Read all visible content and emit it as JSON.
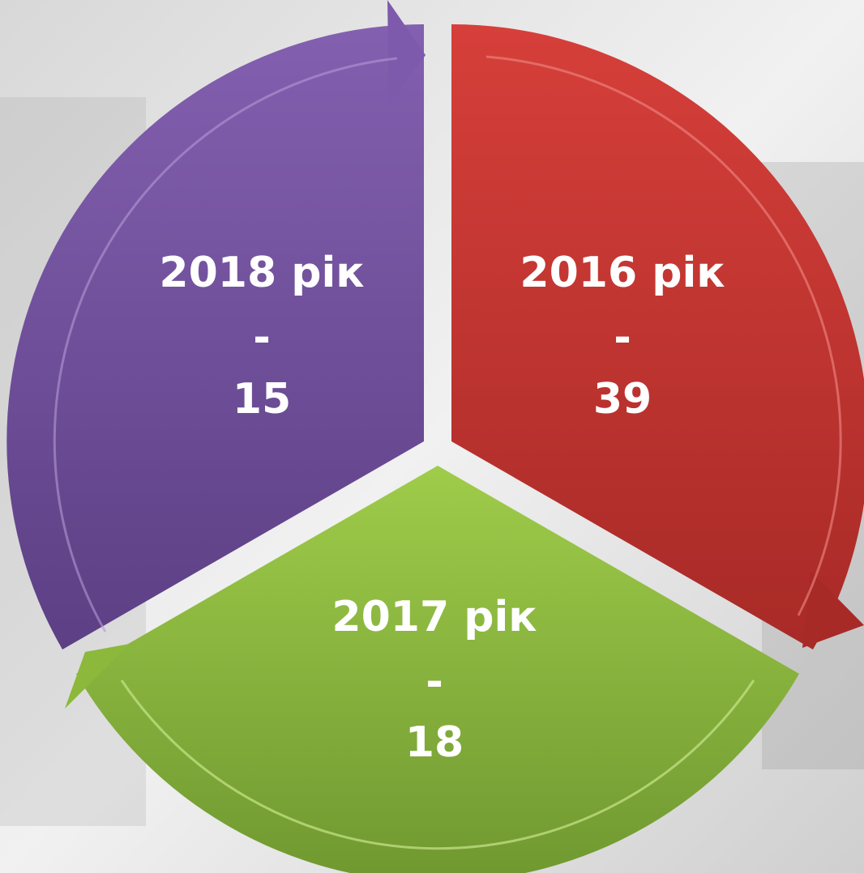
{
  "nodes": [
    {
      "label": "2016 рік",
      "separator": "-",
      "value": 39
    },
    {
      "label": "2017 рік",
      "separator": "-",
      "value": 18
    },
    {
      "label": "2018 рік",
      "separator": "-",
      "value": 15
    }
  ]
}
